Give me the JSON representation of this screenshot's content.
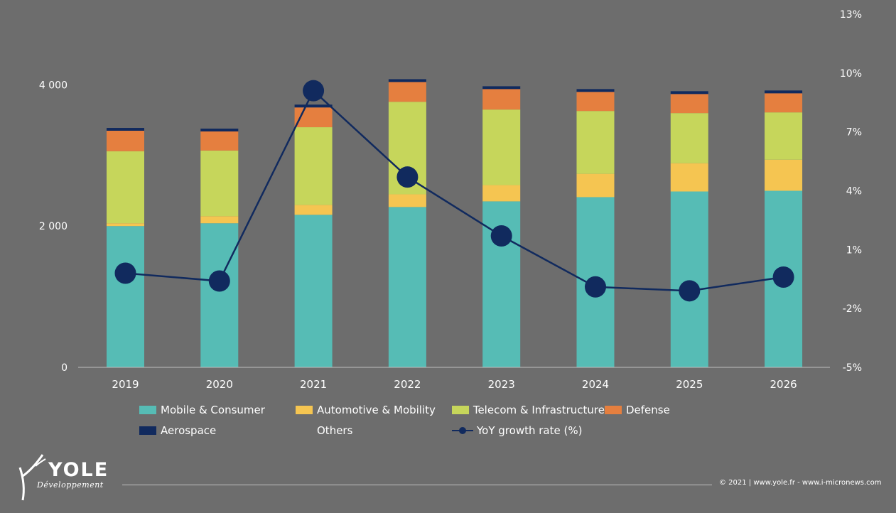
{
  "chart_data": {
    "type": "bar",
    "stacked": true,
    "categories": [
      "2019",
      "2020",
      "2021",
      "2022",
      "2023",
      "2024",
      "2025",
      "2026"
    ],
    "series": [
      {
        "name": "Mobile & Consumer",
        "color": "#56bcb5",
        "values": [
          2000,
          2040,
          2160,
          2270,
          2350,
          2410,
          2490,
          2500
        ]
      },
      {
        "name": "Automotive & Mobility",
        "color": "#f5c551",
        "values": [
          40,
          100,
          140,
          180,
          230,
          330,
          400,
          440
        ]
      },
      {
        "name": "Telecom & Infrastructure",
        "color": "#c6d65b",
        "values": [
          1020,
          930,
          1100,
          1310,
          1070,
          890,
          710,
          670
        ]
      },
      {
        "name": "Defense",
        "color": "#e57f3f",
        "values": [
          290,
          270,
          280,
          280,
          290,
          270,
          270,
          270
        ]
      },
      {
        "name": "Aerospace",
        "color": "#112a5e",
        "values": [
          40,
          40,
          40,
          40,
          40,
          40,
          40,
          40
        ]
      },
      {
        "name": "Others",
        "color": "#6d6d6d",
        "values": [
          0,
          0,
          0,
          0,
          0,
          0,
          0,
          0
        ]
      }
    ],
    "line_series": {
      "name": "YoY growth rate (%)",
      "color": "#112a5e",
      "values": [
        -0.2,
        -0.6,
        9.1,
        4.7,
        1.7,
        -0.9,
        -1.1,
        -0.4
      ]
    },
    "y_left": {
      "ticks": [
        "0",
        "2 000",
        "4 000"
      ],
      "tick_values": [
        0,
        2000,
        4000
      ],
      "ylim": [
        0,
        5000
      ]
    },
    "y_right": {
      "ticks": [
        "-5%",
        "-2%",
        "1%",
        "4%",
        "7%",
        "10%",
        "13%"
      ],
      "tick_values": [
        -5,
        -2,
        1,
        4,
        7,
        10,
        13
      ],
      "ylim": [
        -5,
        13
      ]
    },
    "legend_position": "bottom"
  },
  "footer": {
    "logo_name": "YOLE",
    "logo_sub": "Développement",
    "copyright": "© 2021 | www.yole.fr - www.i-micronews.com"
  }
}
